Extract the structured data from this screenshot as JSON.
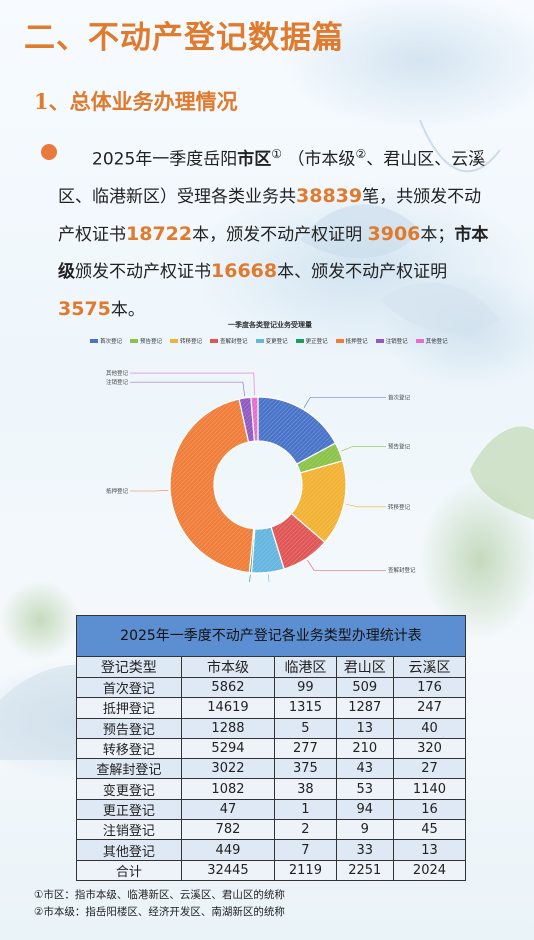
{
  "section_title": "二、不动产登记数据篇",
  "subsection_title": "1、总体业务办理情况",
  "summary": {
    "intro": "2025年一季度岳阳",
    "city_district_label": "市区",
    "note_mark_1": "①",
    "paren_open": "（市本级",
    "note_mark_2": "②",
    "districts_text": "、君山区、云溪区、临港新区）受理各类业务共",
    "total_business": "38839",
    "text_a": "笔，共颁发不动产权证书",
    "total_certificates": "18722",
    "text_b": "本，颁发不动产权证明 ",
    "total_proofs": "3906",
    "text_c": "本；",
    "city_level_label": "市本级",
    "text_d": "颁发不动产权证书",
    "city_certificates": "16668",
    "text_e": "本、颁发不动产权证明",
    "city_proofs": "3575",
    "text_f": "本。"
  },
  "chart_data": {
    "type": "pie",
    "title": "一季度各类登记业务受理量",
    "legend_position": "top",
    "categories": [
      "首次登记",
      "预告登记",
      "转移登记",
      "查解封登记",
      "变更登记",
      "更正登记",
      "抵押登记",
      "注销登记",
      "其他登记"
    ],
    "values": [
      6646,
      1346,
      6101,
      3467,
      2313,
      158,
      17468,
      838,
      502
    ],
    "colors": [
      "#4a74c9",
      "#8bc34a",
      "#f2b233",
      "#e05656",
      "#64b5e0",
      "#1e9e5a",
      "#f07e3a",
      "#8f5bc2",
      "#e56fc9"
    ],
    "label_categories": [
      "首次登记",
      "预告登记",
      "转移登记",
      "查解封登记",
      "变更登记",
      "更正登记",
      "抵押登记",
      "注销登记",
      "其他登记"
    ]
  },
  "table": {
    "title": "2025年一季度不动产登记各业务类型办理统计表",
    "headers": [
      "登记类型",
      "市本级",
      "临港区",
      "君山区",
      "云溪区"
    ],
    "rows": [
      [
        "首次登记",
        "5862",
        "99",
        "509",
        "176"
      ],
      [
        "抵押登记",
        "14619",
        "1315",
        "1287",
        "247"
      ],
      [
        "预告登记",
        "1288",
        "5",
        "13",
        "40"
      ],
      [
        "转移登记",
        "5294",
        "277",
        "210",
        "320"
      ],
      [
        "查解封登记",
        "3022",
        "375",
        "43",
        "27"
      ],
      [
        "变更登记",
        "1082",
        "38",
        "53",
        "1140"
      ],
      [
        "更正登记",
        "47",
        "1",
        "94",
        "16"
      ],
      [
        "注销登记",
        "782",
        "2",
        "9",
        "45"
      ],
      [
        "其他登记",
        "449",
        "7",
        "33",
        "13"
      ],
      [
        "合计",
        "32445",
        "2119",
        "2251",
        "2024"
      ]
    ]
  },
  "notes": [
    "①市区：指市本级、临港新区、云溪区、君山区的统称",
    "②市本级：指岳阳楼区、经济开发区、南湖新区的统称"
  ]
}
